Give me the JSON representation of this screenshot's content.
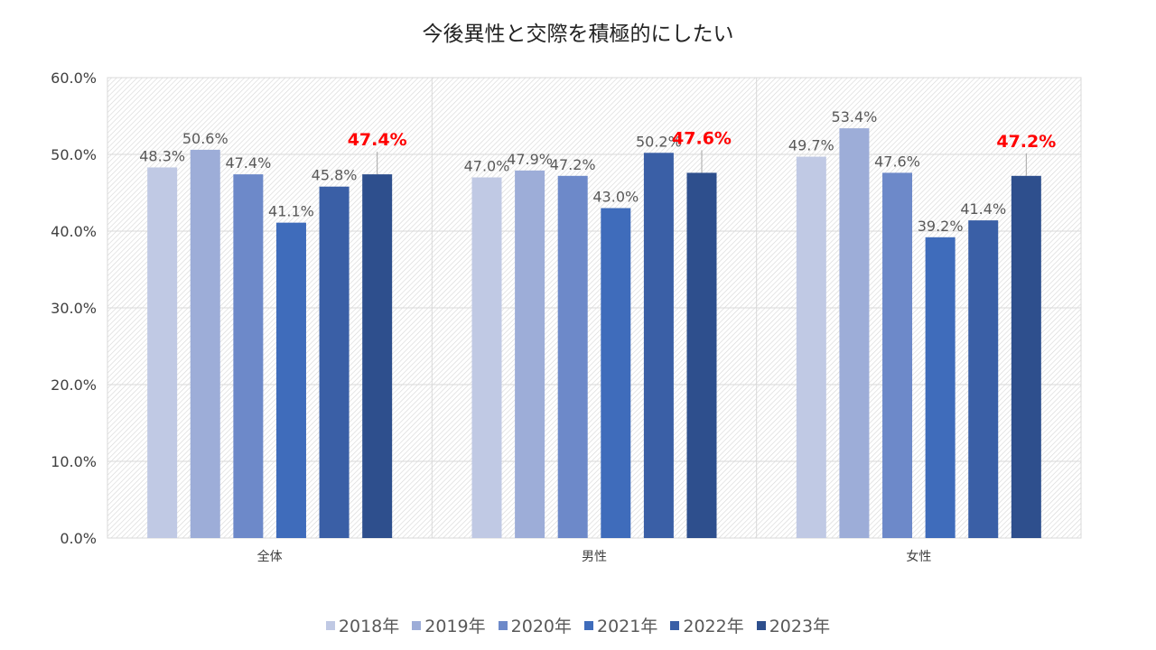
{
  "chart_data": {
    "type": "bar",
    "title": "今後異性と交際を積極的にしたい",
    "categories": [
      "全体",
      "男性",
      "女性"
    ],
    "series": [
      {
        "name": "2018年",
        "values": [
          48.3,
          47.0,
          49.7
        ],
        "color": "#c0c9e4"
      },
      {
        "name": "2019年",
        "values": [
          50.6,
          47.9,
          53.4
        ],
        "color": "#9dadd8"
      },
      {
        "name": "2020年",
        "values": [
          47.4,
          47.2,
          47.6
        ],
        "color": "#6d89c9"
      },
      {
        "name": "2021年",
        "values": [
          41.1,
          43.0,
          39.2
        ],
        "color": "#3f6cbb"
      },
      {
        "name": "2022年",
        "values": [
          45.8,
          50.2,
          41.4
        ],
        "color": "#3a5fa6"
      },
      {
        "name": "2023年",
        "values": [
          47.4,
          47.6,
          47.2
        ],
        "color": "#2e4f8d"
      }
    ],
    "highlight_series": "2023年",
    "highlight_label_color": "#ff0000",
    "yticks": [
      "0.0%",
      "10.0%",
      "20.0%",
      "30.0%",
      "40.0%",
      "50.0%",
      "60.0%"
    ],
    "ylim": [
      0,
      60
    ],
    "xlabel": "",
    "ylabel": "",
    "grid": true,
    "legend": "bottom"
  }
}
